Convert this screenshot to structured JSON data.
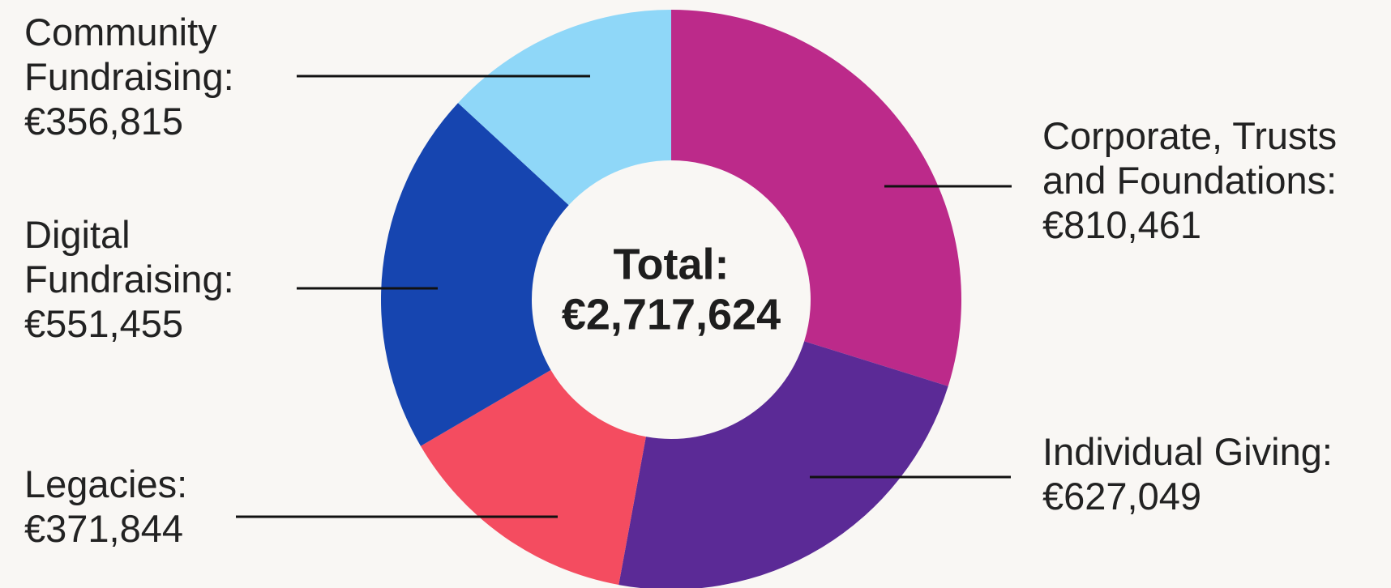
{
  "chart_data": {
    "type": "donut",
    "categories": [
      "Corporate, Trusts and Foundations:",
      "Individual Giving:",
      "Legacies:",
      "Digital Fundraising:",
      "Community Fundraising:"
    ],
    "values": [
      810461,
      627049,
      371844,
      551455,
      356815
    ],
    "value_labels": [
      "€810,461",
      "€627,049",
      "€371,844",
      "€551,455",
      "€356,815"
    ],
    "colors": [
      "#bc2a8a",
      "#5b2a96",
      "#f44c60",
      "#1645b0",
      "#8fd7f8"
    ],
    "total": {
      "label": "Total:",
      "value": 2717624,
      "value_label": "€2,717,624"
    }
  }
}
